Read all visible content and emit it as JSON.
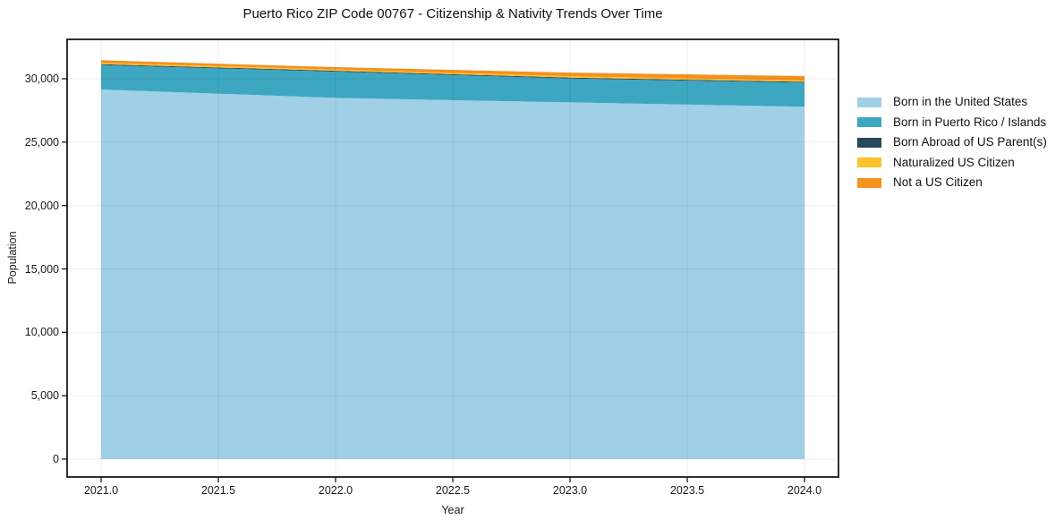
{
  "figure": {
    "background_color": "#ffffff",
    "spine_color": "#1a1a1a",
    "gridline_color": "#ececec",
    "text_color": "#1a1a1a"
  },
  "chart_data": {
    "type": "area",
    "stacked": true,
    "title": "Puerto Rico ZIP Code 00767 - Citizenship & Nativity Trends Over Time",
    "xlabel": "Year",
    "ylabel": "Population",
    "grid": true,
    "legend_position": "outside-right",
    "x": [
      2021,
      2022,
      2023,
      2024
    ],
    "xlim": [
      2020.86,
      2024.15
    ],
    "ylim": [
      -1400,
      33100
    ],
    "series": [
      {
        "name": "Born in the United States",
        "color": "#9fd0e6",
        "values": [
          29150,
          28490,
          28140,
          27790
        ]
      },
      {
        "name": "Born in Puerto Rico / Islands",
        "color": "#3da7c2",
        "values": [
          1930,
          2070,
          1880,
          1900
        ]
      },
      {
        "name": "Born Abroad of US Parent(s)",
        "color": "#26495c",
        "values": [
          70,
          70,
          70,
          70
        ]
      },
      {
        "name": "Naturalized US Citizen",
        "color": "#fcc32d",
        "values": [
          100,
          100,
          100,
          100
        ]
      },
      {
        "name": "Not a US Citizen",
        "color": "#f5911e",
        "values": [
          210,
          190,
          300,
          350
        ]
      }
    ],
    "totals": [
      31460,
      30920,
      30490,
      30210
    ],
    "x_ticks": [
      {
        "label": "2021.0",
        "value": 2021.0
      },
      {
        "label": "2021.5",
        "value": 2021.5
      },
      {
        "label": "2022.0",
        "value": 2022.0
      },
      {
        "label": "2022.5",
        "value": 2022.5
      },
      {
        "label": "2023.0",
        "value": 2023.0
      },
      {
        "label": "2023.5",
        "value": 2023.5
      },
      {
        "label": "2024.0",
        "value": 2024.0
      }
    ],
    "y_ticks": [
      {
        "label": "0",
        "value": 0
      },
      {
        "label": "5,000",
        "value": 5000
      },
      {
        "label": "10,000",
        "value": 10000
      },
      {
        "label": "15,000",
        "value": 15000
      },
      {
        "label": "20,000",
        "value": 20000
      },
      {
        "label": "25,000",
        "value": 25000
      },
      {
        "label": "30,000",
        "value": 30000
      }
    ]
  }
}
